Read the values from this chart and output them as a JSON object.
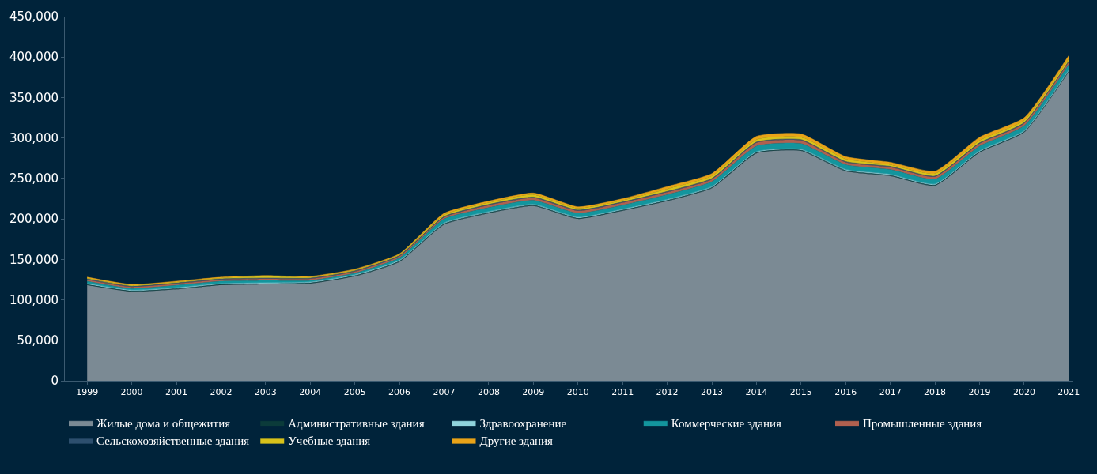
{
  "chart_data": {
    "type": "area",
    "stacked": true,
    "x": [
      1999,
      2000,
      2001,
      2002,
      2003,
      2004,
      2005,
      2006,
      2007,
      2008,
      2009,
      2010,
      2011,
      2012,
      2013,
      2014,
      2015,
      2016,
      2017,
      2018,
      2019,
      2020,
      2021
    ],
    "xlim": [
      1998.5,
      2021.1
    ],
    "xticks": [
      1999,
      2000,
      2001,
      2002,
      2003,
      2004,
      2005,
      2006,
      2007,
      2008,
      2009,
      2010,
      2011,
      2012,
      2013,
      2014,
      2015,
      2016,
      2017,
      2018,
      2019,
      2020,
      2021
    ],
    "ylim": [
      0,
      450000
    ],
    "yticks": [
      {
        "value": 0,
        "label": "0"
      },
      {
        "value": 50000,
        "label": "50,000"
      },
      {
        "value": 100000,
        "label": "100,000"
      },
      {
        "value": 150000,
        "label": "150,000"
      },
      {
        "value": 200000,
        "label": "200,000"
      },
      {
        "value": 250000,
        "label": "250,000"
      },
      {
        "value": 300000,
        "label": "300,000"
      },
      {
        "value": 350000,
        "label": "350,000"
      },
      {
        "value": 400000,
        "label": "400,000"
      },
      {
        "value": 450000,
        "label": "450,000"
      }
    ],
    "grid": false,
    "legend": "bottom",
    "series": [
      {
        "name": "Жилые дома и общежития",
        "color": "#7b8a94",
        "values": [
          118000,
          110000,
          113000,
          118000,
          119000,
          120000,
          129000,
          147000,
          193000,
          207000,
          216000,
          200000,
          210000,
          222000,
          238000,
          281000,
          284000,
          259000,
          253000,
          241000,
          282000,
          307000,
          382000
        ]
      },
      {
        "name": "Административные здания",
        "color": "#0b3b3a",
        "values": [
          1000,
          1000,
          1000,
          1000,
          1000,
          1000,
          1000,
          1000,
          1000,
          1000,
          1000,
          1000,
          1000,
          1000,
          1000,
          1000,
          1000,
          1000,
          1000,
          1000,
          1000,
          1000,
          1000
        ]
      },
      {
        "name": "Здравоохранение",
        "color": "#8fd3dc",
        "values": [
          1000,
          1000,
          1000,
          1000,
          1000,
          1000,
          1000,
          1000,
          1000,
          1000,
          1000,
          1000,
          1000,
          1000,
          1000,
          1000,
          1000,
          1000,
          1000,
          1000,
          1000,
          1000,
          1000
        ]
      },
      {
        "name": "Коммерческие здания",
        "color": "#13959d",
        "values": [
          3000,
          2000,
          3000,
          3000,
          3000,
          2000,
          2000,
          3000,
          5000,
          5000,
          5000,
          5000,
          5000,
          6000,
          6000,
          7000,
          7000,
          6000,
          6000,
          6000,
          6000,
          6000,
          7000
        ]
      },
      {
        "name": "Промышленные здания",
        "color": "#b0604f",
        "values": [
          2000,
          2000,
          2000,
          2000,
          2000,
          2000,
          2000,
          2000,
          2000,
          3000,
          3000,
          3000,
          3000,
          3000,
          3000,
          4000,
          4000,
          3000,
          3000,
          3000,
          3000,
          3000,
          3000
        ]
      },
      {
        "name": "Сельскохозяйственные здания",
        "color": "#2d4f6e",
        "values": [
          1000,
          1000,
          1000,
          1000,
          1000,
          1000,
          1000,
          1000,
          1000,
          1000,
          1000,
          1000,
          1000,
          1000,
          1000,
          1000,
          1000,
          1000,
          1000,
          1000,
          1000,
          1000,
          1000
        ]
      },
      {
        "name": "Учебные здания",
        "color": "#d8c21a",
        "values": [
          1000,
          1000,
          1000,
          1000,
          2000,
          1000,
          1000,
          1000,
          2000,
          2000,
          3000,
          2000,
          2000,
          3000,
          3000,
          3000,
          3000,
          3000,
          2000,
          3000,
          3000,
          3000,
          3000
        ]
      },
      {
        "name": "Другие здания",
        "color": "#e9a318",
        "values": [
          1000,
          1000,
          1000,
          1000,
          1000,
          1000,
          1000,
          1000,
          2000,
          2000,
          2000,
          2000,
          2000,
          3000,
          3000,
          4000,
          4000,
          3000,
          3000,
          3000,
          4000,
          3000,
          4000
        ]
      }
    ]
  }
}
